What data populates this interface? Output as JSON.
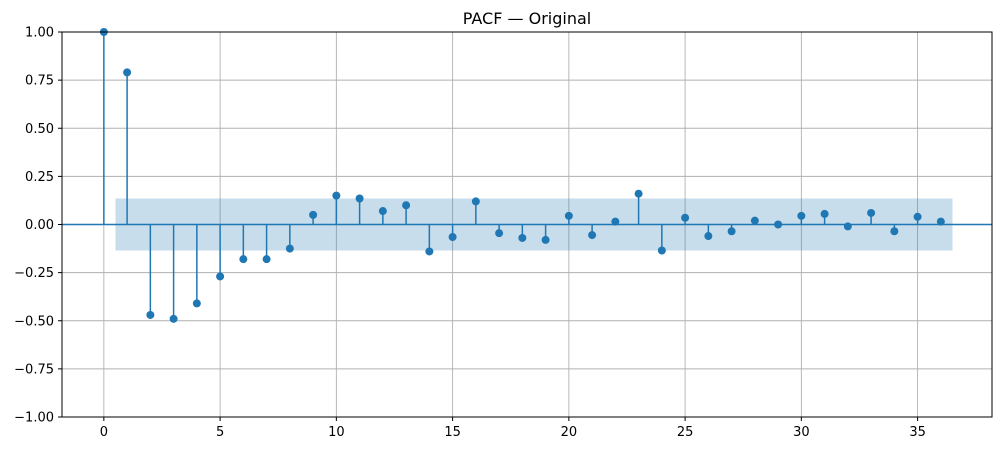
{
  "chart_data": {
    "type": "scatter",
    "subtype": "stem",
    "title": "PACF — Original",
    "xlabel": "",
    "ylabel": "",
    "xlim": [
      -1.8,
      38.2
    ],
    "ylim": [
      -1.0,
      1.0
    ],
    "xticks": [
      0,
      5,
      10,
      15,
      20,
      25,
      30,
      35
    ],
    "xtick_labels": [
      "0",
      "5",
      "10",
      "15",
      "20",
      "25",
      "30",
      "35"
    ],
    "yticks": [
      1.0,
      0.75,
      0.5,
      0.25,
      0.0,
      -0.25,
      -0.5,
      -0.75,
      -1.0
    ],
    "ytick_labels": [
      "1.00",
      "0.75",
      "0.50",
      "0.25",
      "0.00",
      "−0.25",
      "−0.50",
      "−0.75",
      "−1.00"
    ],
    "grid": true,
    "confidence_band": {
      "lag_start": 0.5,
      "lag_end": 36.5,
      "lower": -0.135,
      "upper": 0.135
    },
    "x": [
      0,
      1,
      2,
      3,
      4,
      5,
      6,
      7,
      8,
      9,
      10,
      11,
      12,
      13,
      14,
      15,
      16,
      17,
      18,
      19,
      20,
      21,
      22,
      23,
      24,
      25,
      26,
      27,
      28,
      29,
      30,
      31,
      32,
      33,
      34,
      35,
      36
    ],
    "y": [
      1.0,
      0.79,
      -0.47,
      -0.49,
      -0.41,
      -0.27,
      -0.18,
      -0.18,
      -0.125,
      0.05,
      0.15,
      0.135,
      0.07,
      0.1,
      -0.14,
      -0.065,
      0.12,
      -0.045,
      -0.07,
      -0.08,
      0.045,
      -0.055,
      0.015,
      0.16,
      -0.135,
      0.035,
      -0.06,
      -0.035,
      0.02,
      0.0,
      0.045,
      0.055,
      -0.01,
      0.06,
      -0.035,
      0.04,
      0.015
    ],
    "colors": {
      "stem": "#1f77b4",
      "band": "#1f77b4",
      "grid": "#b0b0b0"
    }
  }
}
